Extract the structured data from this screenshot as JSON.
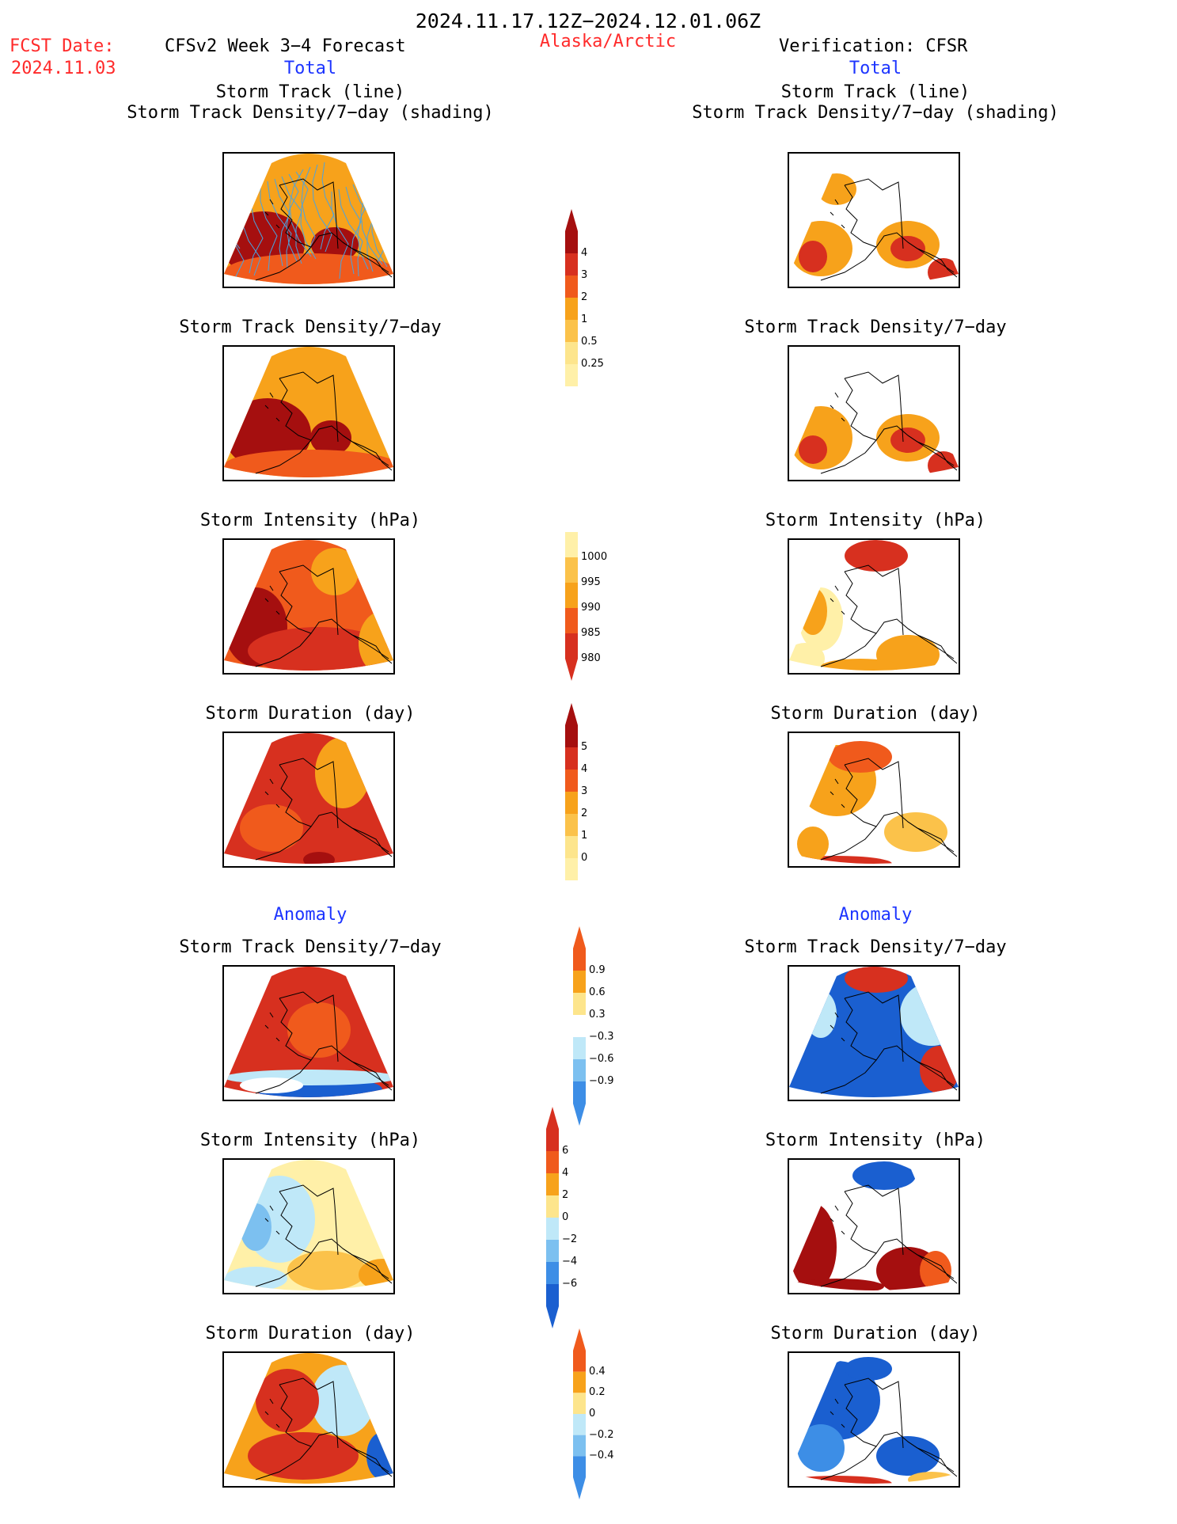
{
  "header": {
    "period": "2024.11.17.12Z−2024.12.01.06Z",
    "fcst_label": "FCST Date:",
    "fcst_date": "2024.11.03",
    "model": "CFSv2 Week 3−4 Forecast",
    "region": "Alaska/Arctic",
    "verification": "Verification: CFSR"
  },
  "sections": {
    "total_left": "Total",
    "total_right": "Total",
    "anomaly_left": "Anomaly",
    "anomaly_right": "Anomaly"
  },
  "titles": {
    "track_line": "Storm Track (line)",
    "track_density_shading": "Storm Track Density/7−day (shading)",
    "track_density": "Storm Track Density/7−day",
    "intensity": "Storm Intensity (hPa)",
    "duration": "Storm Duration (day)"
  },
  "colorbars": {
    "density_total": [
      "4",
      "3",
      "2",
      "1",
      "0.5",
      "0.25"
    ],
    "intensity_total": [
      "1000",
      "995",
      "990",
      "985",
      "980"
    ],
    "duration_total": [
      "5",
      "4",
      "3",
      "2",
      "1",
      "0"
    ],
    "density_anom": [
      "0.9",
      "0.6",
      "0.3",
      "−0.3",
      "−0.6",
      "−0.9"
    ],
    "intensity_anom": [
      "6",
      "4",
      "2",
      "0",
      "−2",
      "−4",
      "−6"
    ],
    "duration_anom": [
      "0.4",
      "0.2",
      "0",
      "−0.2",
      "−0.4"
    ]
  },
  "colors": {
    "title_red": "#ff2a2a",
    "section_blue": "#1d35ff",
    "track_line": "#4aa3df"
  }
}
